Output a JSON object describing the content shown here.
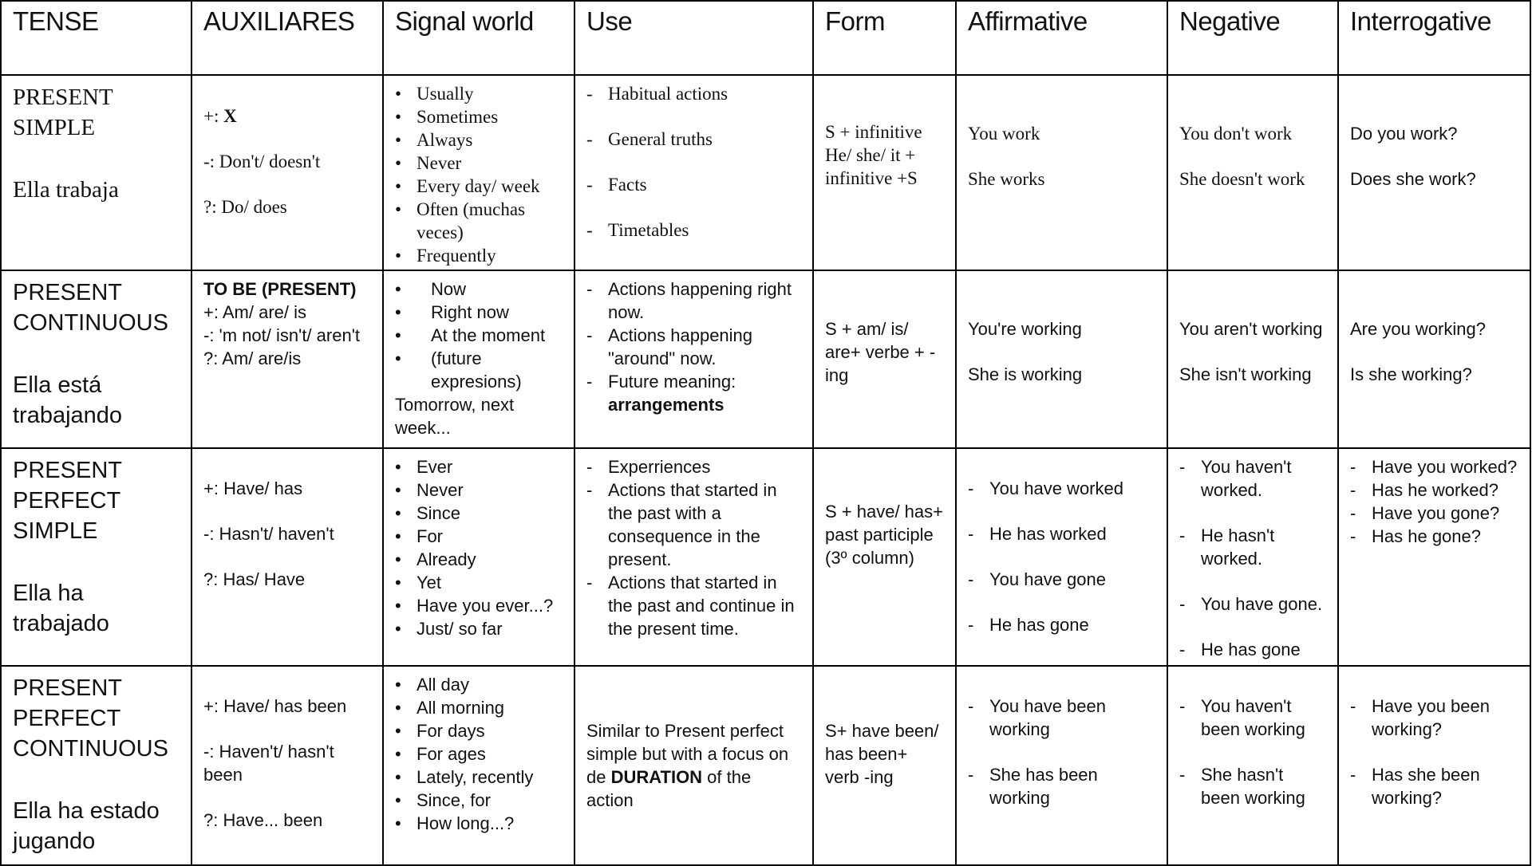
{
  "headers": [
    "TENSE",
    "AUXILIARES",
    "Signal world",
    "Use",
    "Form",
    "Affirmative",
    "Negative",
    "Interrogative"
  ],
  "rows": [
    {
      "tense": [
        "PRESENT SIMPLE",
        "Ella trabaja"
      ],
      "auxiliares": [
        [
          {
            "text": "+: "
          },
          {
            "text": "X",
            "bold": true
          }
        ],
        "-: Don't/ doesn't",
        "?: Do/ does"
      ],
      "signal": [
        "Usually",
        "Sometimes",
        "Always",
        "Never",
        "Every day/ week",
        "Often (muchas veces)",
        "Frequently"
      ],
      "use": [
        "Habitual actions",
        "General truths",
        "Facts",
        "Timetables"
      ],
      "form": [
        "S + infinitive",
        "He/ she/ it + infinitive +S"
      ],
      "affirmative": [
        "You work",
        "She works"
      ],
      "negative": [
        "You don't work",
        "She doesn't work"
      ],
      "interrogative": [
        "Do you work?",
        "Does she work?"
      ]
    },
    {
      "tense": [
        "PRESENT CONTINUOUS",
        "Ella está trabajando"
      ],
      "auxiliares": [
        [
          {
            "text": "TO BE (PRESENT)",
            "bold": true
          }
        ],
        "+: Am/ are/ is",
        "-: 'm not/ isn't/ aren't",
        "?: Am/ are/is"
      ],
      "signal": [
        "Now",
        "Right now",
        "At the moment",
        "(future expresions)",
        {
          "text": "Tomorrow, next week...",
          "nomarker": true
        }
      ],
      "use": [
        "Actions happening right now.",
        "Actions happening \"around\" now.",
        [
          {
            "text": "Future meaning: "
          },
          {
            "text": "arrangements",
            "bold": true
          }
        ]
      ],
      "form": [
        "S + am/ is/ are+ verbe + -ing"
      ],
      "affirmative": [
        "You're working",
        "She is working"
      ],
      "negative": [
        "You aren't working",
        "She isn't working"
      ],
      "interrogative": [
        "Are you working?",
        "Is she working?"
      ]
    },
    {
      "tense": [
        "PRESENT PERFECT SIMPLE",
        "Ella ha trabajado"
      ],
      "auxiliares": [
        "+: Have/ has",
        "-: Hasn't/ haven't",
        "?: Has/ Have"
      ],
      "signal": [
        "Ever",
        "Never",
        "Since",
        "For",
        "Already",
        "Yet",
        "Have you ever...?",
        "Just/ so far"
      ],
      "use": [
        "Experriences",
        "Actions that started in the past with a consequence in the present.",
        "Actions that started in the past and continue in the present time."
      ],
      "form": [
        "S + have/ has+ past participle (3º column)"
      ],
      "affirmative": [
        "You have worked",
        "He has worked",
        "You have gone",
        "He has gone"
      ],
      "negative": [
        "You haven't worked.",
        "He hasn't worked.",
        "You have gone.",
        "He has gone"
      ],
      "interrogative": [
        "Have you worked?",
        "Has he worked?",
        "Have you gone?",
        "Has he gone?"
      ]
    },
    {
      "tense": [
        "PRESENT PERFECT CONTINUOUS",
        "Ella ha estado jugando"
      ],
      "auxiliares": [
        "+: Have/ has been",
        "-: Haven't/ hasn't been",
        "?: Have... been"
      ],
      "signal": [
        "All day",
        "All morning",
        "For days",
        "For ages",
        "Lately, recently",
        "Since, for",
        "How long...?"
      ],
      "use": [
        [
          {
            "text": "Similar to Present  perfect simple but with a focus on de "
          },
          {
            "text": "DURATION",
            "bold": true
          },
          {
            "text": " of the action"
          }
        ]
      ],
      "form": [
        "S+ have been/ has been+ verb -ing"
      ],
      "affirmative": [
        "You have been working",
        "She has been working"
      ],
      "negative": [
        "You haven't been working",
        "She hasn't been working"
      ],
      "interrogative": [
        "Have you been working?",
        "Has she been working?"
      ]
    }
  ]
}
